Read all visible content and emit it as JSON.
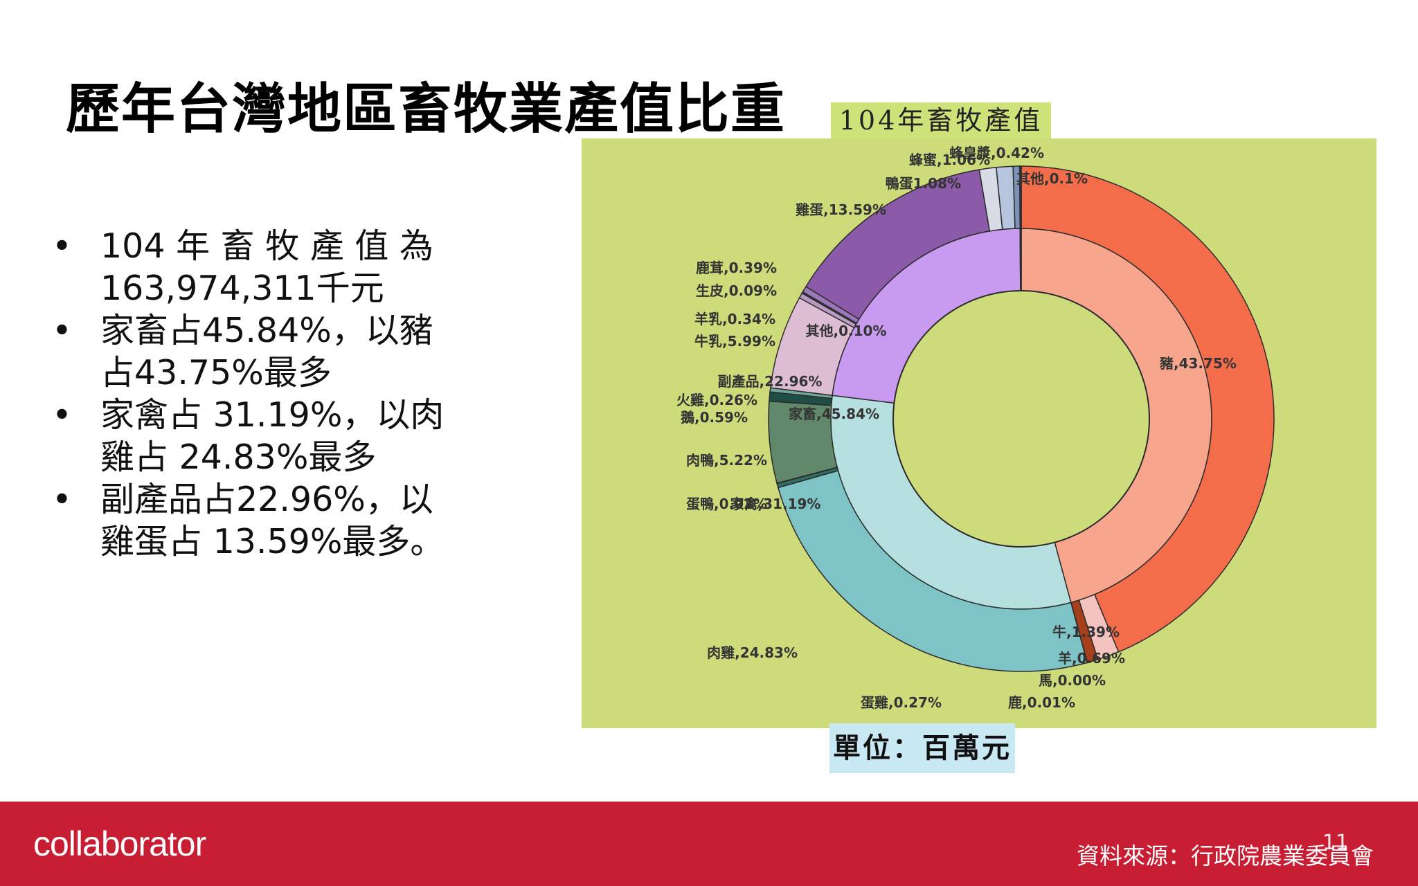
{
  "title": "歷年台灣地區畜牧業產值比重",
  "bullets": [
    "104 年 畜 牧 產 值 為 163,974,311千元",
    "家畜占45.84%，以豬占43.75%最多",
    "家禽占 31.19%，以肉雞占 24.83%最多",
    "副產品占22.96%，以雞蛋占 13.59%最多。"
  ],
  "chart_title": "104年畜牧產值",
  "unit_label": "單位：百萬元",
  "footer": {
    "brand": "collaborator",
    "source": "資料來源：行政院農業委員會",
    "page": "11"
  },
  "colors": {
    "footer": "#c81e34",
    "panel": "#cedb7b",
    "title_bg": "#cfe27a",
    "unit_bg": "#c8e8f4"
  },
  "chart_data": {
    "type": "pie",
    "variant": "double-donut",
    "title": "104年畜牧產值",
    "inner": [
      {
        "label": "家畜",
        "value": 45.84,
        "display": "家畜,45.84%",
        "color": "#f7a68d"
      },
      {
        "label": "家禽",
        "value": 31.19,
        "display": "家禽,31.19%",
        "color": "#b6dfe0"
      },
      {
        "label": "副產品",
        "value": 22.96,
        "display": "副產品,22.96%",
        "color": "#c89af0"
      },
      {
        "label": "其他",
        "value": 0.1,
        "display": "其他,0.10%",
        "color": "#3d5a80"
      }
    ],
    "outer": [
      {
        "label": "豬",
        "value": 43.75,
        "display": "豬,43.75%",
        "color": "#f36d4b"
      },
      {
        "label": "牛",
        "value": 1.39,
        "display": "牛,1.39%",
        "color": "#f4c3c0"
      },
      {
        "label": "羊",
        "value": 0.69,
        "display": "羊,0.69%",
        "color": "#a6401c"
      },
      {
        "label": "馬",
        "value": 0.0,
        "display": "馬,0.00%",
        "color": "#d98c6a"
      },
      {
        "label": "鹿",
        "value": 0.01,
        "display": "鹿,0.01%",
        "color": "#bf6a4a"
      },
      {
        "label": "肉雞",
        "value": 24.83,
        "display": "肉雞,24.83%",
        "color": "#7ec3c5"
      },
      {
        "label": "蛋雞",
        "value": 0.27,
        "display": "蛋雞,0.27%",
        "color": "#2f6e64"
      },
      {
        "label": "蛋鴨",
        "value": 0.02,
        "display": "蛋鴨,0.02%",
        "color": "#4a8a7a"
      },
      {
        "label": "肉鴨",
        "value": 5.22,
        "display": "肉鴨,5.22%",
        "color": "#62886c"
      },
      {
        "label": "鵝",
        "value": 0.59,
        "display": "鵝,0.59%",
        "color": "#1f4e45"
      },
      {
        "label": "火雞",
        "value": 0.26,
        "display": "火雞,0.26%",
        "color": "#6fa89a"
      },
      {
        "label": "牛乳",
        "value": 5.99,
        "display": "牛乳,5.99%",
        "color": "#dcbdd4"
      },
      {
        "label": "羊乳",
        "value": 0.34,
        "display": "羊乳,0.34%",
        "color": "#b89ac4"
      },
      {
        "label": "生皮",
        "value": 0.09,
        "display": "生皮,0.09%",
        "color": "#5e3c76"
      },
      {
        "label": "鹿茸",
        "value": 0.39,
        "display": "鹿茸,0.39%",
        "color": "#9a78b8"
      },
      {
        "label": "雞蛋",
        "value": 13.59,
        "display": "雞蛋,13.59%",
        "color": "#8b5aa8"
      },
      {
        "label": "鴨蛋",
        "value": 1.08,
        "display": "鴨蛋1.08%",
        "color": "#d7dbe6"
      },
      {
        "label": "蜂蜜",
        "value": 1.06,
        "display": "蜂蜜,1.06%",
        "color": "#b6c4de"
      },
      {
        "label": "蜂皇漿",
        "value": 0.42,
        "display": "蜂皇漿,0.42%",
        "color": "#7e92b8"
      },
      {
        "label": "其他",
        "value": 0.1,
        "display": "其他,0.1%",
        "color": "#263a66"
      }
    ]
  }
}
